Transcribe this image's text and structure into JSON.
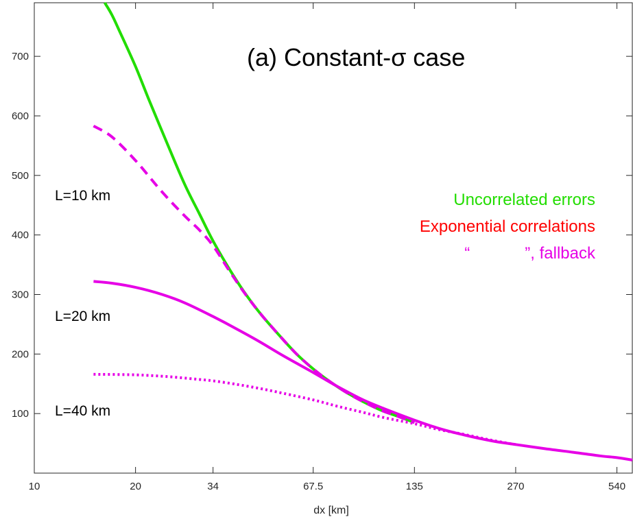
{
  "chart_data": {
    "type": "line",
    "title": "(a)   Constant-σ  case",
    "xlabel": "dx [km]",
    "ylabel": "",
    "xscale": "log",
    "xlim": [
      10,
      600
    ],
    "ylim": [
      0,
      790
    ],
    "xticks": [
      10,
      20,
      34,
      67.5,
      135,
      270,
      540
    ],
    "xtick_labels": [
      "10",
      "20",
      "34",
      "67.5",
      "135",
      "270",
      "540"
    ],
    "yticks": [
      100,
      200,
      300,
      400,
      500,
      600,
      700
    ],
    "ytick_labels": [
      "100",
      "200",
      "300",
      "400",
      "500",
      "600",
      "700"
    ],
    "grid": false,
    "legend": {
      "placement": "right",
      "entries": [
        {
          "text": "Uncorrelated errors",
          "color": "#22dd00"
        },
        {
          "text": "Exponential correlations",
          "color": "#ff0000"
        },
        {
          "text": "“            ”, fallback",
          "color": "#e600e6"
        }
      ]
    },
    "curve_labels": [
      {
        "text": "L=10 km",
        "series": "fallback-L10"
      },
      {
        "text": "L=20 km",
        "series": "fallback-L20"
      },
      {
        "text": "L=40 km",
        "series": "fallback-L40"
      }
    ],
    "series": [
      {
        "id": "uncorrelated",
        "color": "#22dd00",
        "style": "solid",
        "x": [
          16.2,
          17,
          18,
          20,
          22,
          25,
          28,
          31,
          34,
          38,
          42,
          47,
          53,
          60,
          67.5,
          76,
          85,
          95,
          108,
          121,
          135
        ],
        "y": [
          790,
          770,
          740,
          683,
          625,
          550,
          485,
          435,
          390,
          343,
          305,
          268,
          234,
          201,
          175,
          153,
          135,
          120,
          105,
          95,
          85
        ]
      },
      {
        "id": "fallback-L10",
        "color": "#e600e6",
        "style": "dashed",
        "x": [
          15,
          17,
          20,
          24,
          28,
          31,
          34,
          38,
          42,
          47,
          53,
          60,
          67.5,
          76,
          85,
          95,
          108,
          121,
          135
        ],
        "y": [
          583,
          565,
          525,
          472,
          432,
          408,
          382,
          340,
          304,
          268,
          234,
          201,
          175,
          153,
          135,
          120,
          105,
          95,
          85
        ]
      },
      {
        "id": "fallback-L20",
        "color": "#e600e6",
        "style": "solid",
        "x": [
          15,
          17,
          20,
          24,
          28,
          34,
          40,
          47,
          55,
          67.5,
          80,
          95,
          110,
          135,
          160,
          190,
          230,
          270,
          330,
          400,
          480,
          540,
          600
        ],
        "y": [
          322,
          319,
          312,
          300,
          286,
          263,
          242,
          220,
          197,
          169,
          145,
          123,
          108,
          89,
          75,
          64,
          54,
          48,
          41,
          35,
          29,
          26,
          22
        ]
      },
      {
        "id": "fallback-L40",
        "color": "#e600e6",
        "style": "dotted",
        "x": [
          15,
          20,
          25,
          30,
          34,
          40,
          47,
          55,
          67.5,
          80,
          95,
          110,
          135,
          160,
          190,
          230,
          270
        ],
        "y": [
          166,
          165,
          162,
          158,
          155,
          149,
          142,
          134,
          123,
          112,
          102,
          93,
          83,
          73,
          65,
          55,
          48
        ]
      }
    ]
  }
}
